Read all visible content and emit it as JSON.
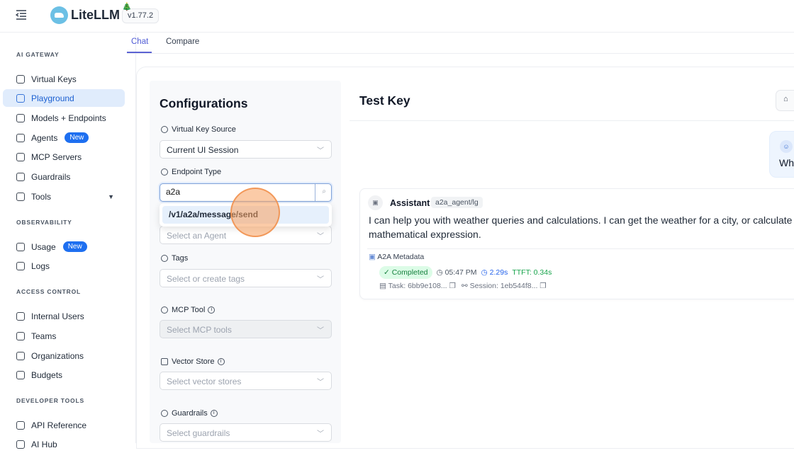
{
  "header": {
    "brand": "LiteLLM",
    "version": "v1.77.2",
    "tree": "🎄"
  },
  "sidebar": {
    "sections": [
      {
        "title": "AI GATEWAY",
        "items": [
          {
            "label": "Virtual Keys"
          },
          {
            "label": "Playground",
            "active": true
          },
          {
            "label": "Models + Endpoints"
          },
          {
            "label": "Agents",
            "badge": "New"
          },
          {
            "label": "MCP Servers"
          },
          {
            "label": "Guardrails"
          },
          {
            "label": "Tools",
            "expandable": true
          }
        ]
      },
      {
        "title": "OBSERVABILITY",
        "items": [
          {
            "label": "Usage",
            "badge": "New"
          },
          {
            "label": "Logs"
          }
        ]
      },
      {
        "title": "ACCESS CONTROL",
        "items": [
          {
            "label": "Internal Users"
          },
          {
            "label": "Teams"
          },
          {
            "label": "Organizations"
          },
          {
            "label": "Budgets"
          }
        ]
      },
      {
        "title": "DEVELOPER TOOLS",
        "items": [
          {
            "label": "API Reference"
          },
          {
            "label": "AI Hub"
          }
        ]
      }
    ]
  },
  "tabs": [
    {
      "label": "Chat",
      "active": true
    },
    {
      "label": "Compare"
    }
  ],
  "config": {
    "title": "Configurations",
    "virtual_key_source": {
      "label": "Virtual Key Source",
      "value": "Current UI Session"
    },
    "endpoint_type": {
      "label": "Endpoint Type",
      "input": "a2a",
      "option": "/v1/a2a/message/send"
    },
    "agent": {
      "placeholder": "Select an Agent"
    },
    "tags": {
      "label": "Tags",
      "placeholder": "Select or create tags"
    },
    "mcp_tool": {
      "label": "MCP Tool",
      "placeholder": "Select MCP tools"
    },
    "vector_store": {
      "label": "Vector Store",
      "placeholder": "Select vector stores"
    },
    "guardrails": {
      "label": "Guardrails",
      "placeholder": "Select guardrails"
    }
  },
  "chat": {
    "title": "Test Key",
    "user_message": "Wh",
    "assistant": {
      "name": "Assistant",
      "model": "a2a_agent/lg",
      "message": "I can help you with weather queries and calculations. I can get the weather for a city, or calculate a mathematical expression.",
      "metadata": {
        "title": "A2A Metadata",
        "status": "Completed",
        "time": "05:47 PM",
        "latency": "2.29s",
        "ttft": "TTFT: 0.34s",
        "task": "Task: 6bb9e108...",
        "session": "Session: 1eb544f8..."
      }
    }
  },
  "colors": {
    "accent": "#1e6ff0",
    "active_bg": "#e0ecfc",
    "tab": "#5b63d3",
    "success": "#15803d",
    "cursor": "#f8a05f"
  }
}
